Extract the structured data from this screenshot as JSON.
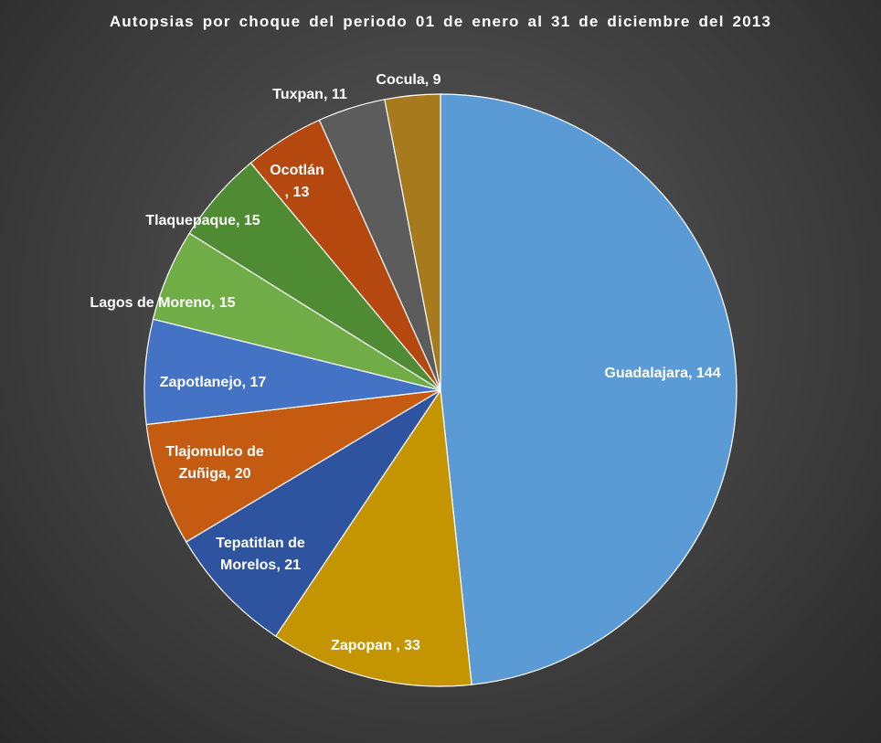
{
  "chart_data": {
    "type": "pie",
    "title": "Autopsias  por  choque  del  periodo  01  de  enero  al  31  de  diciembre  del  2013",
    "slices": [
      {
        "name": "Guadalajara",
        "value": 144,
        "color": "#5b9bd5",
        "label_lines": [
          "Guadalajara,  144"
        ]
      },
      {
        "name": "Zapopan",
        "value": 33,
        "color": "#c49500",
        "label_lines": [
          "Zapopan  , 33"
        ]
      },
      {
        "name": "Tepatitlan de Morelos",
        "value": 21,
        "color": "#2e54a0",
        "label_lines": [
          "Tepatitlan  de",
          "Morelos, 21"
        ]
      },
      {
        "name": "Tlajomulco de Zuñiga",
        "value": 20,
        "color": "#c55a11",
        "label_lines": [
          "Tlajomulco  de",
          "Zuñiga, 20"
        ]
      },
      {
        "name": "Zapotlanejo",
        "value": 17,
        "color": "#4472c4",
        "label_lines": [
          "Zapotlanejo,  17"
        ]
      },
      {
        "name": "Lagos de Moreno",
        "value": 15,
        "color": "#70ad47",
        "label_lines": [
          "Lagos de Moreno, 15"
        ]
      },
      {
        "name": "Tlaquepaque",
        "value": 15,
        "color": "#4e8b33",
        "label_lines": [
          "Tlaquepaque,  15"
        ]
      },
      {
        "name": "Ocotlán",
        "value": 13,
        "color": "#b5480f",
        "label_lines": [
          "Ocotlán",
          ", 13"
        ]
      },
      {
        "name": "Tuxpan",
        "value": 11,
        "color": "#5c5c5c",
        "label_lines": [
          "Tuxpan,  11"
        ]
      },
      {
        "name": "Cocula",
        "value": 9,
        "color": "#a77a1e",
        "label_lines": [
          "Cocula,  9"
        ]
      }
    ],
    "legend": "none",
    "start": "12 o'clock",
    "direction": "clockwise"
  }
}
